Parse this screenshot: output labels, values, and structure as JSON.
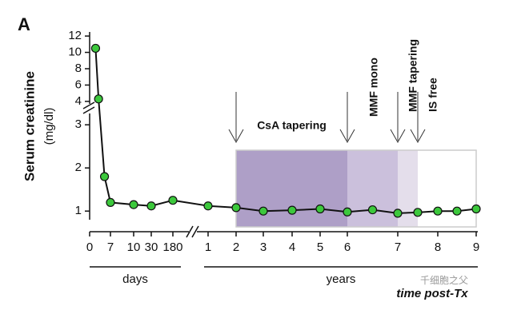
{
  "chart_data": {
    "type": "line",
    "panel_label": "A",
    "ylabel": "Serum creatinine",
    "ylabel_unit": "(mg/dl)",
    "xlabel": "time post-Tx",
    "ylim": [
      0.8,
      12.5
    ],
    "ybreak": [
      3.3,
      3.5
    ],
    "yticks": [
      1,
      2,
      3,
      4,
      6,
      8,
      10,
      12
    ],
    "color": "#3cc83c",
    "line_color": "#111111",
    "panels": [
      {
        "unit": "days",
        "xticks": [
          0,
          7,
          10,
          30,
          180
        ],
        "x": [
          2,
          3,
          5,
          7,
          10,
          30,
          180
        ],
        "values": [
          10.5,
          4.3,
          1.8,
          1.2,
          1.15,
          1.12,
          1.25
        ]
      },
      {
        "unit": "years",
        "xticks": [
          1,
          2,
          3,
          4,
          5,
          6,
          7,
          8,
          9
        ],
        "x": [
          1,
          2,
          3,
          4,
          5,
          6,
          6.5,
          7,
          7.5,
          8,
          8.5,
          9
        ],
        "values": [
          1.12,
          1.08,
          1.0,
          1.02,
          1.05,
          0.98,
          1.03,
          0.95,
          0.97,
          1.0,
          1.0,
          1.05
        ]
      }
    ],
    "phases": [
      {
        "label": "CsA tapering",
        "start": 2,
        "end": 6,
        "color": "#ae9fc7"
      },
      {
        "label": "MMF mono",
        "start": 6,
        "end": 7,
        "color": "#cbc0dc"
      },
      {
        "label": "MMF tapering",
        "start": 7,
        "end": 7.5,
        "color": "#e4deeb"
      },
      {
        "label": "IS free",
        "start": 7.5,
        "end": 9,
        "color": "#ffffff"
      }
    ],
    "watermark": "千细胞之父"
  }
}
